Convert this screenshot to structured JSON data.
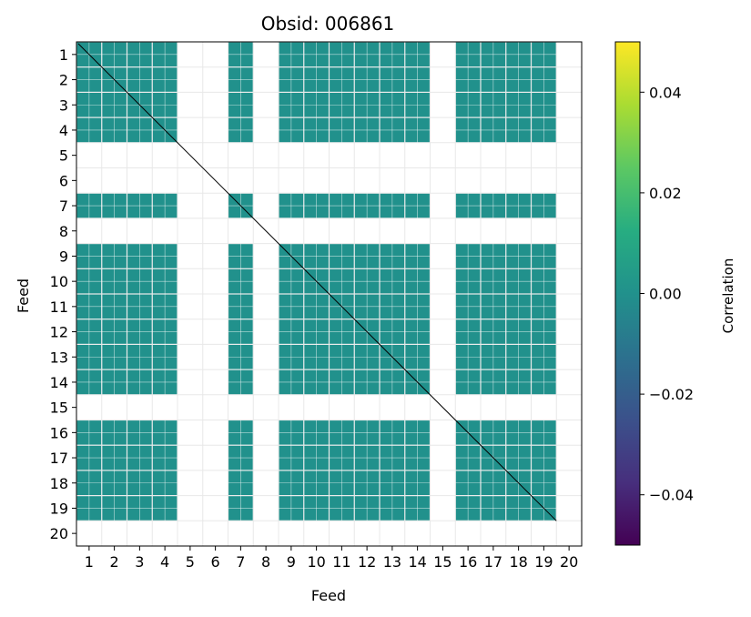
{
  "chart_data": {
    "type": "heatmap",
    "title": "Obsid: 006861",
    "xlabel": "Feed",
    "ylabel": "Feed",
    "x_ticks": [
      "1",
      "2",
      "3",
      "4",
      "5",
      "6",
      "7",
      "8",
      "9",
      "10",
      "11",
      "12",
      "13",
      "14",
      "15",
      "16",
      "17",
      "18",
      "19",
      "20"
    ],
    "y_ticks": [
      "1",
      "2",
      "3",
      "4",
      "5",
      "6",
      "7",
      "8",
      "9",
      "10",
      "11",
      "12",
      "13",
      "14",
      "15",
      "16",
      "17",
      "18",
      "19",
      "20"
    ],
    "missing_feeds": [
      5,
      6,
      8,
      15,
      20
    ],
    "colorbar": {
      "label": "Correlation",
      "vmin": -0.05,
      "vmax": 0.05,
      "ticks": [
        -0.04,
        -0.02,
        0.0,
        0.02,
        0.04
      ],
      "tick_labels": [
        "−0.04",
        "−0.02",
        "0.00",
        "0.02",
        "0.04"
      ],
      "colormap": "viridis"
    },
    "cell_value_typical": 0.0,
    "diagonal_note": "diagonal (auto-correlation) masked with thin black line"
  },
  "colors": {
    "fill": "#21918c",
    "grid": "#e8e8e8",
    "diag": "#000000"
  }
}
